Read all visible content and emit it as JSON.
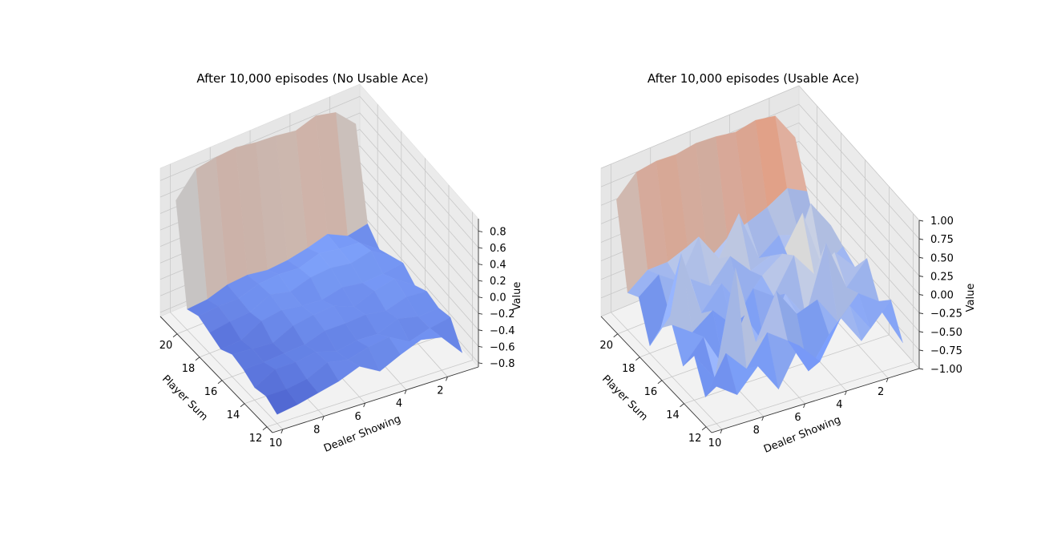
{
  "chart_data": [
    {
      "type": "surface",
      "title": "After 10,000 episodes (No Usable Ace)",
      "xlabel": "Player Sum",
      "ylabel": "Dealer Showing",
      "zlabel": "Value",
      "x_ticks": [
        "12",
        "14",
        "16",
        "18",
        "20"
      ],
      "y_ticks": [
        "2",
        "4",
        "6",
        "8",
        "10"
      ],
      "z_ticks": [
        "−0.8",
        "−0.6",
        "−0.4",
        "−0.2",
        "0.0",
        "0.2",
        "0.4",
        "0.6",
        "0.8"
      ],
      "z_tick_values": [
        -0.8,
        -0.6,
        -0.4,
        -0.2,
        0.0,
        0.2,
        0.4,
        0.6,
        0.8
      ],
      "zlim": [
        -0.85,
        0.95
      ],
      "colormap": "coolwarm",
      "x": [
        12,
        13,
        14,
        15,
        16,
        17,
        18,
        19,
        20,
        21
      ],
      "y": [
        1,
        2,
        3,
        4,
        5,
        6,
        7,
        8,
        9,
        10
      ],
      "z": [
        [
          -0.72,
          -0.45,
          -0.5,
          -0.46,
          -0.55,
          -0.44,
          -0.52,
          -0.6,
          -0.45,
          0.6
        ],
        [
          -0.45,
          -0.5,
          -0.52,
          -0.44,
          -0.38,
          -0.48,
          -0.36,
          -0.42,
          -0.5,
          0.84
        ],
        [
          -0.4,
          -0.58,
          -0.46,
          -0.52,
          -0.44,
          -0.5,
          -0.42,
          -0.4,
          -0.38,
          0.9
        ],
        [
          -0.5,
          -0.44,
          -0.56,
          -0.48,
          -0.54,
          -0.46,
          -0.38,
          -0.36,
          -0.45,
          0.82
        ],
        [
          -0.62,
          -0.48,
          -0.55,
          -0.5,
          -0.44,
          -0.52,
          -0.4,
          -0.44,
          -0.5,
          0.86
        ],
        [
          -0.48,
          -0.55,
          -0.6,
          -0.5,
          -0.46,
          -0.5,
          -0.48,
          -0.42,
          -0.52,
          0.88
        ],
        [
          -0.58,
          -0.5,
          -0.52,
          -0.58,
          -0.5,
          -0.46,
          -0.42,
          -0.44,
          -0.48,
          0.92
        ],
        [
          -0.64,
          -0.62,
          -0.56,
          -0.6,
          -0.62,
          -0.5,
          -0.54,
          -0.52,
          -0.5,
          0.9
        ],
        [
          -0.7,
          -0.66,
          -0.56,
          -0.62,
          -0.6,
          -0.64,
          -0.56,
          -0.52,
          -0.58,
          0.86
        ],
        [
          -0.74,
          -0.66,
          -0.7,
          -0.62,
          -0.58,
          -0.66,
          -0.6,
          -0.54,
          -0.6,
          0.58
        ]
      ]
    },
    {
      "type": "surface",
      "title": "After 10,000 episodes (Usable Ace)",
      "xlabel": "Player Sum",
      "ylabel": "Dealer Showing",
      "zlabel": "Value",
      "x_ticks": [
        "12",
        "14",
        "16",
        "18",
        "20"
      ],
      "y_ticks": [
        "2",
        "4",
        "6",
        "8",
        "10"
      ],
      "z_ticks": [
        "−1.00",
        "−0.75",
        "−0.50",
        "−0.25",
        "0.00",
        "0.25",
        "0.50",
        "0.75",
        "1.00"
      ],
      "z_tick_values": [
        -1.0,
        -0.75,
        -0.5,
        -0.25,
        0.0,
        0.25,
        0.5,
        0.75,
        1.0
      ],
      "zlim": [
        -1.0,
        1.0
      ],
      "colormap": "coolwarm",
      "x": [
        12,
        13,
        14,
        15,
        16,
        17,
        18,
        19,
        20,
        21
      ],
      "y": [
        1,
        2,
        3,
        4,
        5,
        6,
        7,
        8,
        9,
        10
      ],
      "z": [
        [
          -0.7,
          -0.3,
          -0.5,
          -0.1,
          -0.4,
          -0.3,
          -0.2,
          -0.6,
          -0.1,
          0.45
        ],
        [
          -0.2,
          -0.6,
          -0.3,
          -0.4,
          -0.1,
          -0.5,
          0.2,
          -0.4,
          0.05,
          0.85
        ],
        [
          -0.5,
          -0.2,
          -0.6,
          0.3,
          -0.3,
          0.35,
          -0.5,
          -0.3,
          -0.1,
          0.9
        ],
        [
          -0.1,
          -0.5,
          -0.2,
          -0.6,
          0.05,
          -0.1,
          -0.3,
          -0.5,
          -0.2,
          0.85
        ],
        [
          -0.6,
          -0.9,
          -0.3,
          -0.2,
          -0.4,
          -0.3,
          -0.4,
          0.2,
          -0.3,
          0.9
        ],
        [
          -0.3,
          -0.4,
          0.1,
          -0.8,
          -0.2,
          -0.6,
          -0.1,
          -0.3,
          -0.5,
          0.92
        ],
        [
          -0.8,
          -0.2,
          -0.5,
          -0.3,
          -0.6,
          -0.2,
          -0.4,
          0.1,
          -0.2,
          0.88
        ],
        [
          -0.4,
          -0.6,
          0.6,
          -0.9,
          -0.3,
          -0.5,
          -0.2,
          -0.4,
          -0.3,
          0.9
        ],
        [
          -0.7,
          -0.3,
          -0.8,
          -0.4,
          -0.5,
          0.4,
          -0.6,
          -0.2,
          -0.3,
          0.86
        ],
        [
          -0.5,
          -0.8,
          -0.4,
          -0.7,
          -0.3,
          -0.5,
          -0.9,
          -0.4,
          -0.5,
          0.6
        ]
      ]
    }
  ]
}
